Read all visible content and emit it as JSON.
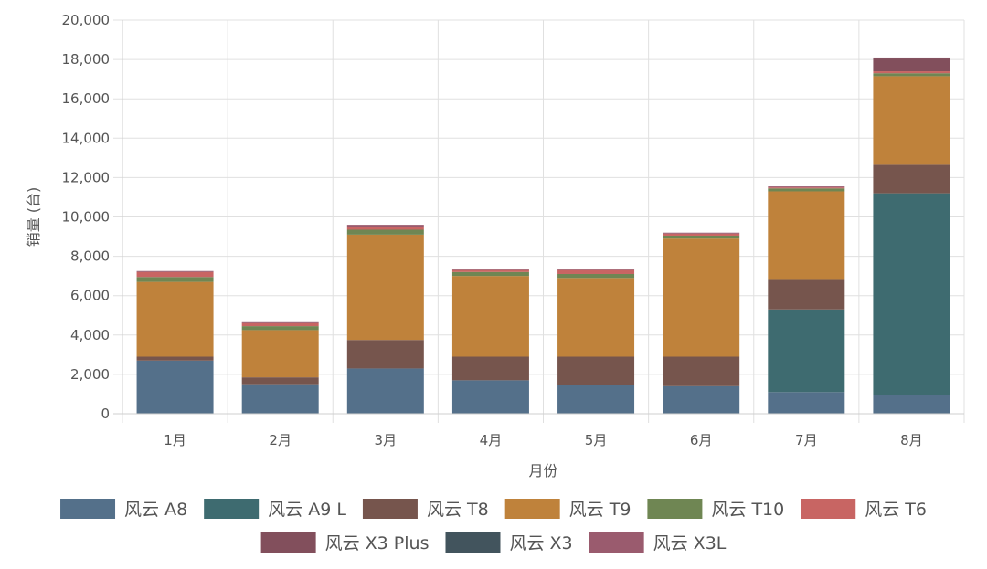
{
  "chart_data": {
    "type": "bar",
    "stacked": true,
    "categories": [
      "1月",
      "2月",
      "3月",
      "4月",
      "5月",
      "6月",
      "7月",
      "8月"
    ],
    "xlabel": "月份",
    "ylabel": "销量 (台)",
    "ylim": [
      0,
      20000
    ],
    "yticks": [
      0,
      2000,
      4000,
      6000,
      8000,
      10000,
      12000,
      14000,
      16000,
      18000,
      20000
    ],
    "ytick_labels": [
      "0",
      "2,000",
      "4,000",
      "6,000",
      "8,000",
      "10,000",
      "12,000",
      "14,000",
      "16,000",
      "18,000",
      "20,000"
    ],
    "grid": true,
    "legend_position": "bottom",
    "series": [
      {
        "name": "风云 A8",
        "color": "#54708a",
        "values": [
          2700,
          1500,
          2300,
          1700,
          1450,
          1400,
          1100,
          950
        ]
      },
      {
        "name": "风云 A9 L",
        "color": "#3e6b70",
        "values": [
          0,
          0,
          0,
          0,
          0,
          0,
          4200,
          10250
        ]
      },
      {
        "name": "风云 T8",
        "color": "#76554d",
        "values": [
          200,
          350,
          1450,
          1200,
          1450,
          1500,
          1500,
          1450
        ]
      },
      {
        "name": "风云 T9",
        "color": "#bf823b",
        "values": [
          3800,
          2400,
          5350,
          4100,
          4000,
          6000,
          4500,
          4500
        ]
      },
      {
        "name": "风云 T10",
        "color": "#6f8653",
        "values": [
          250,
          200,
          250,
          200,
          200,
          150,
          150,
          150
        ]
      },
      {
        "name": "风云 T6",
        "color": "#c86563",
        "values": [
          250,
          150,
          150,
          100,
          200,
          100,
          50,
          100
        ]
      },
      {
        "name": "风云 X3 Plus",
        "color": "#824f5c",
        "values": [
          0,
          0,
          0,
          0,
          0,
          0,
          0,
          650
        ]
      },
      {
        "name": "风云 X3",
        "color": "#42545d",
        "values": [
          0,
          0,
          0,
          0,
          0,
          0,
          0,
          0
        ]
      },
      {
        "name": "风云 X3L",
        "color": "#9a5b6e",
        "values": [
          50,
          50,
          100,
          50,
          50,
          50,
          50,
          50
        ]
      }
    ]
  }
}
